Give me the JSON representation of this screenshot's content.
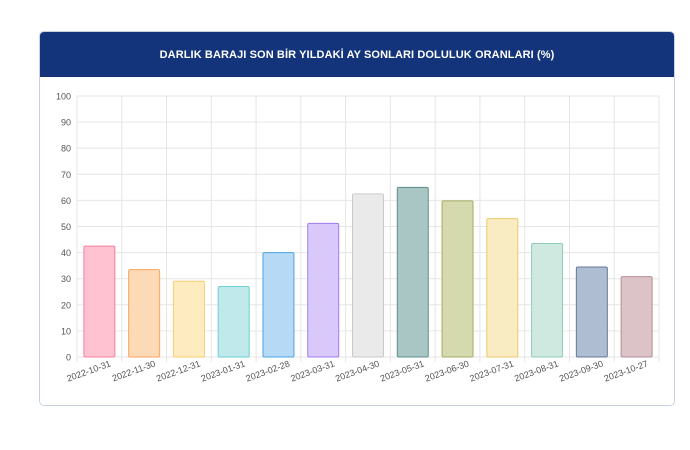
{
  "header": {
    "title": "DARLIK BARAJI SON BİR YILDAKİ AY SONLARI DOLULUK ORANLARI (%)"
  },
  "colors": {
    "header_bg": "#13347a",
    "grid": "#e6e6e6"
  },
  "chart_data": {
    "type": "bar",
    "title": "DARLIK BARAJI SON BİR YILDAKİ AY SONLARI DOLULUK ORANLARI (%)",
    "categories": [
      "2022-10-31",
      "2022-11-30",
      "2022-12-31",
      "2023-01-31",
      "2023-02-28",
      "2023-03-31",
      "2023-04-30",
      "2023-05-31",
      "2023-06-30",
      "2023-07-31",
      "2023-08-31",
      "2023-09-30",
      "2023-10-27"
    ],
    "values": [
      42.5,
      33.5,
      29,
      27,
      40,
      51.2,
      62.5,
      65,
      59.8,
      53,
      43.5,
      34.5,
      30.8
    ],
    "ylim": [
      0,
      100
    ],
    "yticks": [
      0,
      10,
      20,
      30,
      40,
      50,
      60,
      70,
      80,
      90,
      100
    ],
    "grid": true,
    "bar_colors": [
      {
        "fill": "#ffc2d1",
        "stroke": "#f4809e"
      },
      {
        "fill": "#fed9b5",
        "stroke": "#f5a65c"
      },
      {
        "fill": "#feecc0",
        "stroke": "#f5cf6e"
      },
      {
        "fill": "#bfe9ea",
        "stroke": "#6ccfd2"
      },
      {
        "fill": "#b6daf6",
        "stroke": "#4aa4e6"
      },
      {
        "fill": "#d9c9fb",
        "stroke": "#a07cf0"
      },
      {
        "fill": "#eaeaea",
        "stroke": "#c9c9ca"
      },
      {
        "fill": "#a9c6c4",
        "stroke": "#5f8e8c"
      },
      {
        "fill": "#d5d9ae",
        "stroke": "#a8ac62"
      },
      {
        "fill": "#f9ebc2",
        "stroke": "#ecca6a"
      },
      {
        "fill": "#cfe9e1",
        "stroke": "#8fcdb9"
      },
      {
        "fill": "#aebdd2",
        "stroke": "#67799a"
      },
      {
        "fill": "#dcc3c8",
        "stroke": "#b58d96"
      }
    ]
  }
}
